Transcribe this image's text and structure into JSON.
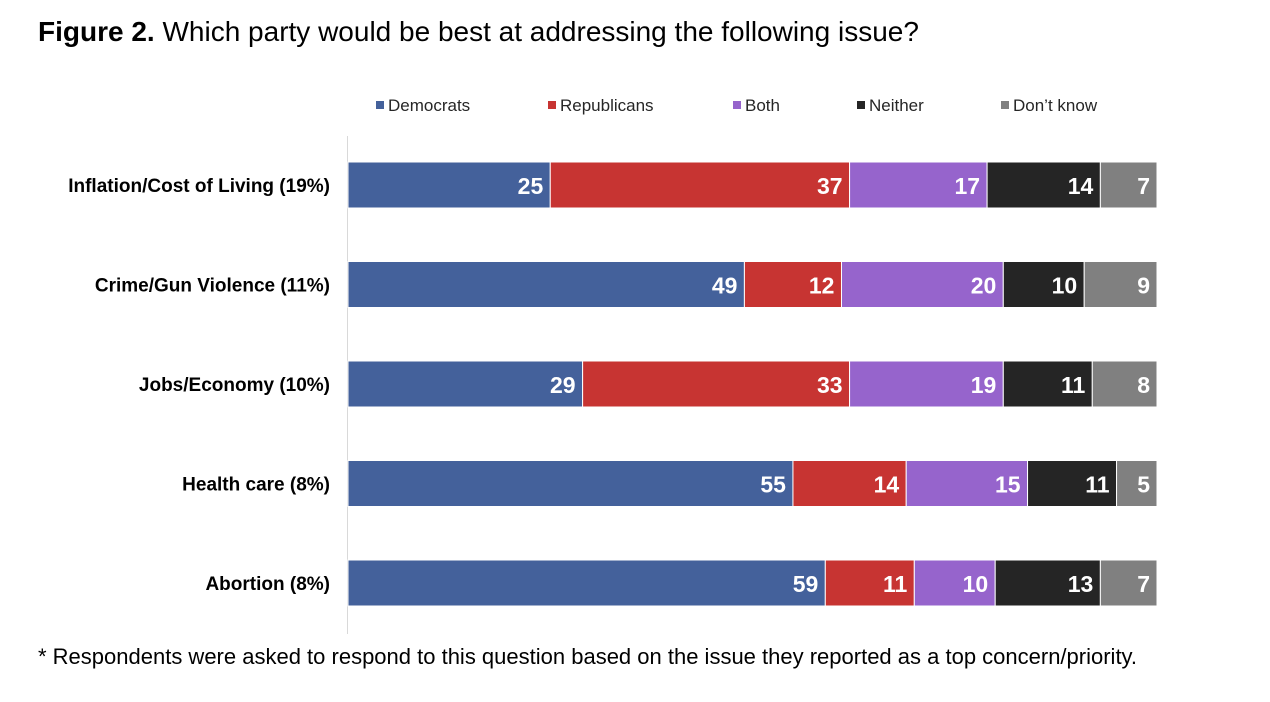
{
  "title": {
    "figure_label": "Figure 2.",
    "question": "Which party would be best at addressing the following issue?"
  },
  "footnote": "* Respondents were asked to respond to this question based on the issue they reported as a top concern/priority.",
  "chart_data": {
    "type": "bar",
    "orientation": "horizontal",
    "stacked": true,
    "legend_position": "top",
    "xlim": [
      0,
      100
    ],
    "grid": false,
    "categories": [
      "Inflation/Cost of Living (19%)",
      "Crime/Gun Violence (11%)",
      "Jobs/Economy (10%)",
      "Health care (8%)",
      "Abortion (8%)"
    ],
    "series": [
      {
        "name": "Democrats",
        "color": "#44619b",
        "values": [
          25,
          49,
          29,
          55,
          59
        ]
      },
      {
        "name": "Republicans",
        "color": "#c73432",
        "values": [
          37,
          12,
          33,
          14,
          11
        ]
      },
      {
        "name": "Both",
        "color": "#9664cc",
        "values": [
          17,
          20,
          19,
          15,
          10
        ]
      },
      {
        "name": "Neither",
        "color": "#252525",
        "values": [
          14,
          10,
          11,
          11,
          13
        ]
      },
      {
        "name": "Don’t know",
        "color": "#808080",
        "values": [
          7,
          9,
          8,
          5,
          7
        ]
      }
    ]
  }
}
